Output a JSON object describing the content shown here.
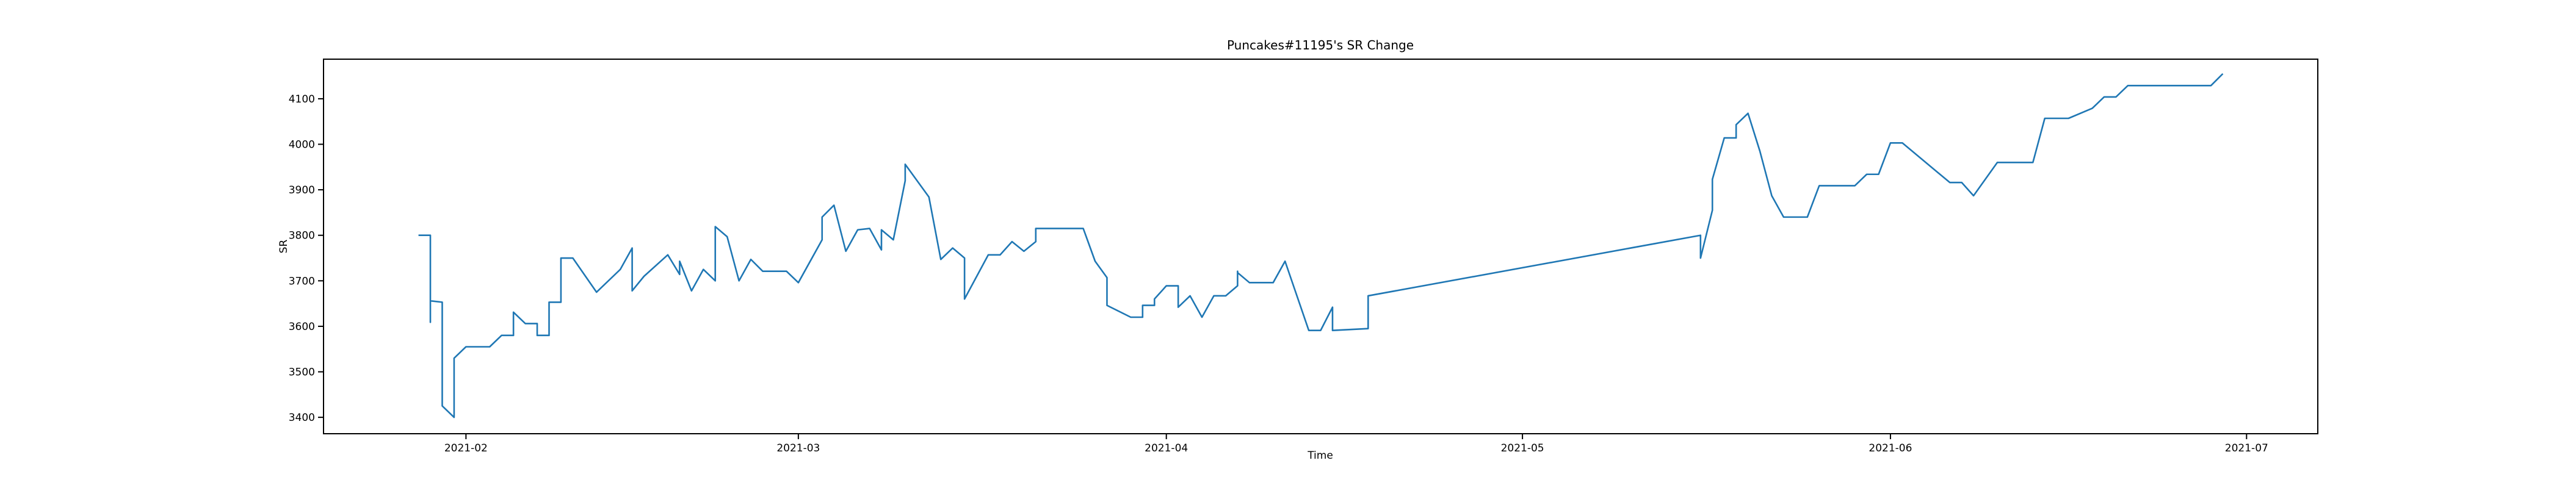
{
  "chart_data": {
    "type": "line",
    "title": "Puncakes#11195's SR Change",
    "xlabel": "Time",
    "ylabel": "SR",
    "color": "#1f77b4",
    "x": [
      "2021-01-28",
      "2021-01-29",
      "2021-01-29",
      "2021-01-29",
      "2021-01-30",
      "2021-01-30",
      "2021-01-31",
      "2021-01-31",
      "2021-01-31",
      "2021-02-01",
      "2021-02-03",
      "2021-02-04",
      "2021-02-05",
      "2021-02-05",
      "2021-02-06",
      "2021-02-07",
      "2021-02-07",
      "2021-02-08",
      "2021-02-08",
      "2021-02-08",
      "2021-02-09",
      "2021-02-09",
      "2021-02-09",
      "2021-02-10",
      "2021-02-12",
      "2021-02-14",
      "2021-02-15",
      "2021-02-15",
      "2021-02-15",
      "2021-02-16",
      "2021-02-18",
      "2021-02-19",
      "2021-02-19",
      "2021-02-20",
      "2021-02-21",
      "2021-02-21",
      "2021-02-22",
      "2021-02-22",
      "2021-02-23",
      "2021-02-24",
      "2021-02-25",
      "2021-02-25",
      "2021-02-26",
      "2021-02-28",
      "2021-03-01",
      "2021-03-03",
      "2021-03-03",
      "2021-03-04",
      "2021-03-04",
      "2021-03-05",
      "2021-03-06",
      "2021-03-07",
      "2021-03-08",
      "2021-03-08",
      "2021-03-09",
      "2021-03-10",
      "2021-03-10",
      "2021-03-12",
      "2021-03-13",
      "2021-03-14",
      "2021-03-15",
      "2021-03-15",
      "2021-03-17",
      "2021-03-18",
      "2021-03-19",
      "2021-03-20",
      "2021-03-20",
      "2021-03-21",
      "2021-03-21",
      "2021-03-25",
      "2021-03-26",
      "2021-03-27",
      "2021-03-27",
      "2021-03-29",
      "2021-03-30",
      "2021-03-30",
      "2021-03-31",
      "2021-03-31",
      "2021-04-01",
      "2021-04-02",
      "2021-04-02",
      "2021-04-03",
      "2021-04-04",
      "2021-04-05",
      "2021-04-06",
      "2021-04-07",
      "2021-04-07",
      "2021-04-07",
      "2021-04-08",
      "2021-04-10",
      "2021-04-11",
      "2021-04-13",
      "2021-04-14",
      "2021-04-15",
      "2021-04-15",
      "2021-04-18",
      "2021-04-18",
      "2021-05-16",
      "2021-05-16",
      "2021-05-17",
      "2021-05-17",
      "2021-05-18",
      "2021-05-19",
      "2021-05-19",
      "2021-05-20",
      "2021-05-21",
      "2021-05-22",
      "2021-05-23",
      "2021-05-25",
      "2021-05-26",
      "2021-05-29",
      "2021-05-30",
      "2021-05-31",
      "2021-06-01",
      "2021-06-02",
      "2021-06-06",
      "2021-06-07",
      "2021-06-08",
      "2021-06-10",
      "2021-06-13",
      "2021-06-14",
      "2021-06-16",
      "2021-06-18",
      "2021-06-19",
      "2021-06-20",
      "2021-06-21",
      "2021-06-28",
      "2021-06-29"
    ],
    "values": [
      3800,
      3800,
      3609,
      3656,
      3653,
      3425,
      3400,
      3530,
      3530,
      3555,
      3555,
      3580,
      3580,
      3631,
      3606,
      3606,
      3580,
      3580,
      3609,
      3653,
      3653,
      3675,
      3750,
      3750,
      3675,
      3725,
      3772,
      3772,
      3678,
      3710,
      3757,
      3714,
      3743,
      3678,
      3725,
      3725,
      3700,
      3819,
      3797,
      3700,
      3747,
      3747,
      3721,
      3721,
      3696,
      3790,
      3840,
      3866,
      3866,
      3765,
      3812,
      3815,
      3768,
      3812,
      3790,
      3920,
      3956,
      3884,
      3747,
      3772,
      3750,
      3660,
      3757,
      3757,
      3786,
      3765,
      3765,
      3786,
      3815,
      3815,
      3743,
      3707,
      3646,
      3620,
      3620,
      3646,
      3646,
      3660,
      3689,
      3689,
      3642,
      3667,
      3620,
      3667,
      3667,
      3689,
      3721,
      3718,
      3696,
      3696,
      3743,
      3591,
      3591,
      3642,
      3591,
      3595,
      3667,
      3800,
      3750,
      3855,
      3923,
      4014,
      4014,
      4043,
      4068,
      3985,
      3887,
      3840,
      3840,
      3909,
      3909,
      3934,
      3934,
      4003,
      4003,
      3916,
      3916,
      3887,
      3960,
      3960,
      4057,
      4057,
      4079,
      4104,
      4104,
      4129,
      4129,
      4155
    ],
    "xlim": [
      "2021-01-20",
      "2021-07-07"
    ],
    "xticks": [
      {
        "value": "2021-02-01",
        "label": "2021-02"
      },
      {
        "value": "2021-03-01",
        "label": "2021-03"
      },
      {
        "value": "2021-04-01",
        "label": "2021-04"
      },
      {
        "value": "2021-05-01",
        "label": "2021-05"
      },
      {
        "value": "2021-06-01",
        "label": "2021-06"
      },
      {
        "value": "2021-07-01",
        "label": "2021-07"
      }
    ],
    "ylim": [
      3364,
      4187
    ],
    "yticks": [
      3400,
      3500,
      3600,
      3700,
      3800,
      3900,
      4000,
      4100
    ],
    "grid": false
  }
}
